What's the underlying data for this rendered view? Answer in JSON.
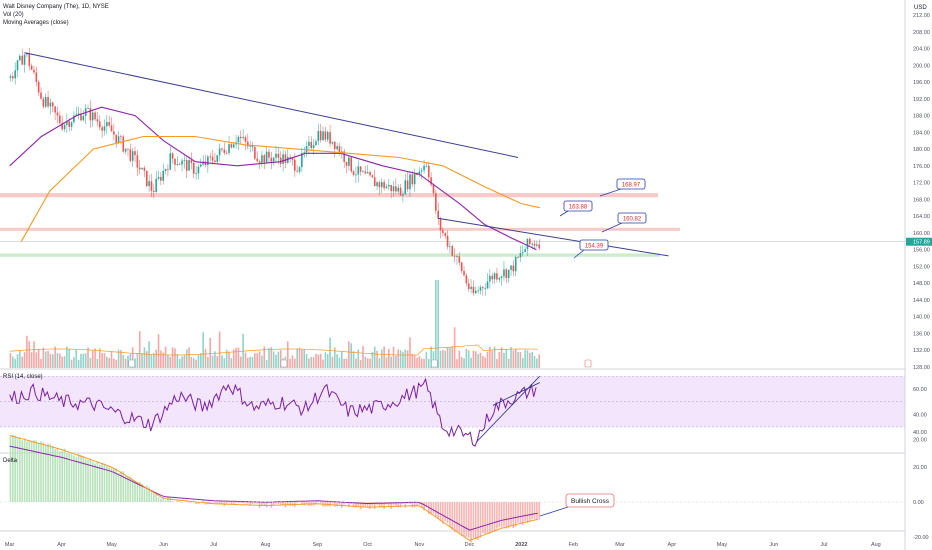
{
  "header": {
    "symbol_line": "Walt Disney Company (The), 1D, NYSE",
    "volume_line": "Vol (20)",
    "ma_line": "Moving Averages (close)",
    "currency": "USD"
  },
  "colors": {
    "up": "#26a69a",
    "down": "#ef5350",
    "trendline": "#3a3f8f",
    "ma_fast": "#8e24aa",
    "ma_slow": "#f59b23",
    "resistance_band": "#f8c9c9",
    "support_band": "#cdeccf",
    "rsi_fill": "#f3e5fb",
    "rsi_line": "#7b1fa2",
    "callout_border": "#2a3fa8",
    "callout_text": "#d32f2f",
    "current_price_bg": "#26a69a"
  },
  "chart_data": [
    {
      "type": "candlestick",
      "panel": "price",
      "title": "Walt Disney Company (The), 1D, NYSE",
      "ylim": [
        128,
        212
      ],
      "y_ticks": [
        128,
        132,
        136,
        140,
        144,
        148,
        152,
        156,
        160,
        164,
        168,
        172,
        176,
        180,
        184,
        188,
        192,
        196,
        200,
        204,
        208,
        212
      ],
      "x_ticks": [
        "Mar",
        "Apr",
        "May",
        "Jun",
        "Jul",
        "Aug",
        "Sep",
        "Oct",
        "Nov",
        "Dec",
        "2022",
        "Feb",
        "Mar",
        "Apr",
        "May",
        "Jun",
        "Jul",
        "Aug"
      ],
      "current_price": 157.89,
      "price_path": [
        {
          "date": "2021-03-01",
          "close": 197
        },
        {
          "date": "2021-03-10",
          "close": 203
        },
        {
          "date": "2021-03-20",
          "close": 192
        },
        {
          "date": "2021-04-01",
          "close": 186
        },
        {
          "date": "2021-04-15",
          "close": 189
        },
        {
          "date": "2021-05-01",
          "close": 184
        },
        {
          "date": "2021-05-15",
          "close": 177
        },
        {
          "date": "2021-05-25",
          "close": 170
        },
        {
          "date": "2021-06-05",
          "close": 178
        },
        {
          "date": "2021-06-20",
          "close": 175
        },
        {
          "date": "2021-07-01",
          "close": 178
        },
        {
          "date": "2021-07-15",
          "close": 183
        },
        {
          "date": "2021-07-28",
          "close": 178
        },
        {
          "date": "2021-08-10",
          "close": 178
        },
        {
          "date": "2021-08-20",
          "close": 176
        },
        {
          "date": "2021-09-01",
          "close": 184
        },
        {
          "date": "2021-09-10",
          "close": 182
        },
        {
          "date": "2021-09-22",
          "close": 175
        },
        {
          "date": "2021-10-05",
          "close": 172
        },
        {
          "date": "2021-10-20",
          "close": 170
        },
        {
          "date": "2021-11-05",
          "close": 177
        },
        {
          "date": "2021-11-12",
          "close": 162
        },
        {
          "date": "2021-11-25",
          "close": 152
        },
        {
          "date": "2021-12-02",
          "close": 145
        },
        {
          "date": "2021-12-15",
          "close": 150
        },
        {
          "date": "2021-12-25",
          "close": 151
        },
        {
          "date": "2022-01-04",
          "close": 157
        },
        {
          "date": "2022-01-10",
          "close": 157.89
        }
      ],
      "moving_averages": [
        {
          "name": "MA fast",
          "color": "purple",
          "path": [
            {
              "date": "2021-03-01",
              "close": 176
            },
            {
              "date": "2021-03-20",
              "close": 183
            },
            {
              "date": "2021-04-10",
              "close": 188
            },
            {
              "date": "2021-04-25",
              "close": 190
            },
            {
              "date": "2021-05-15",
              "close": 188
            },
            {
              "date": "2021-06-01",
              "close": 182
            },
            {
              "date": "2021-06-20",
              "close": 177
            },
            {
              "date": "2021-07-15",
              "close": 176
            },
            {
              "date": "2021-08-10",
              "close": 177
            },
            {
              "date": "2021-08-25",
              "close": 179
            },
            {
              "date": "2021-09-15",
              "close": 179
            },
            {
              "date": "2021-10-10",
              "close": 176
            },
            {
              "date": "2021-11-01",
              "close": 174
            },
            {
              "date": "2021-11-25",
              "close": 167
            },
            {
              "date": "2021-12-10",
              "close": 162
            },
            {
              "date": "2021-12-25",
              "close": 159
            },
            {
              "date": "2022-01-10",
              "close": 156
            }
          ]
        },
        {
          "name": "MA slow",
          "color": "orange",
          "path": [
            {
              "date": "2021-03-08",
              "close": 158
            },
            {
              "date": "2021-03-25",
              "close": 170
            },
            {
              "date": "2021-04-20",
              "close": 180
            },
            {
              "date": "2021-05-20",
              "close": 183
            },
            {
              "date": "2021-06-20",
              "close": 183
            },
            {
              "date": "2021-07-20",
              "close": 181
            },
            {
              "date": "2021-08-20",
              "close": 180
            },
            {
              "date": "2021-09-20",
              "close": 179
            },
            {
              "date": "2021-10-20",
              "close": 178
            },
            {
              "date": "2021-11-15",
              "close": 176
            },
            {
              "date": "2021-12-10",
              "close": 171
            },
            {
              "date": "2022-01-01",
              "close": 167
            },
            {
              "date": "2022-01-12",
              "close": 166
            }
          ]
        }
      ],
      "horizontal_zones": [
        {
          "name": "resistance",
          "from": 168.5,
          "to": 169.5
        },
        {
          "name": "resistance",
          "from": 160.5,
          "to": 161.2
        },
        {
          "name": "support",
          "from": 154.3,
          "to": 155.1
        }
      ],
      "price_labels": [
        "168.97",
        "163.88",
        "160.82",
        "154.39"
      ],
      "trendlines": [
        {
          "name": "descending resistance",
          "from": {
            "date": "2021-03-10",
            "price": 203
          },
          "to": {
            "date": "2021-12-30",
            "price": 178
          }
        },
        {
          "name": "descending triangle top",
          "from": {
            "date": "2021-11-12",
            "price": 163.5
          },
          "to": {
            "date": "2022-03-30",
            "price": 154.5
          }
        }
      ],
      "volume_panel_label": "Vol (20)"
    },
    {
      "type": "line",
      "panel": "rsi",
      "title": "RSI (14, close)",
      "ylim": [
        10,
        72
      ],
      "y_ticks": [
        "60.00",
        "40.00",
        "20.00"
      ],
      "band": [
        30,
        70
      ],
      "midline": 50,
      "series": [
        {
          "name": "RSI (14, close)",
          "values": [
            {
              "date": "2021-03-01",
              "value": 52
            },
            {
              "date": "2021-03-15",
              "value": 58
            },
            {
              "date": "2021-04-01",
              "value": 50
            },
            {
              "date": "2021-04-20",
              "value": 48
            },
            {
              "date": "2021-05-10",
              "value": 38
            },
            {
              "date": "2021-05-25",
              "value": 32
            },
            {
              "date": "2021-06-10",
              "value": 55
            },
            {
              "date": "2021-06-25",
              "value": 45
            },
            {
              "date": "2021-07-10",
              "value": 64
            },
            {
              "date": "2021-07-25",
              "value": 45
            },
            {
              "date": "2021-08-10",
              "value": 50
            },
            {
              "date": "2021-08-25",
              "value": 44
            },
            {
              "date": "2021-09-05",
              "value": 60
            },
            {
              "date": "2021-09-20",
              "value": 42
            },
            {
              "date": "2021-10-05",
              "value": 45
            },
            {
              "date": "2021-10-20",
              "value": 52
            },
            {
              "date": "2021-11-05",
              "value": 62
            },
            {
              "date": "2021-11-15",
              "value": 30
            },
            {
              "date": "2021-12-05",
              "value": 20
            },
            {
              "date": "2021-12-15",
              "value": 44
            },
            {
              "date": "2021-12-25",
              "value": 52
            },
            {
              "date": "2022-01-10",
              "value": 60
            }
          ]
        }
      ],
      "trendlines": [
        {
          "from": {
            "date": "2021-12-05",
            "value": 18
          },
          "to": {
            "date": "2022-01-12",
            "value": 70
          }
        },
        {
          "from": {
            "date": "2021-12-15",
            "value": 47
          },
          "to": {
            "date": "2022-01-12",
            "value": 65
          }
        }
      ]
    },
    {
      "type": "histogram",
      "panel": "delta",
      "title": "Delta",
      "ylim": [
        -27,
        50
      ],
      "y_ticks": [
        "40.00",
        "20.00",
        "0.00",
        "-20.00"
      ],
      "annotation": "Bullish Cross",
      "series": [
        {
          "name": "Delta",
          "values": [
            {
              "date": "2021-03-01",
              "value": 38
            },
            {
              "date": "2021-04-01",
              "value": 30
            },
            {
              "date": "2021-05-01",
              "value": 20
            },
            {
              "date": "2021-06-01",
              "value": 2
            },
            {
              "date": "2021-07-01",
              "value": -1
            },
            {
              "date": "2021-08-01",
              "value": -2
            },
            {
              "date": "2021-09-01",
              "value": -1
            },
            {
              "date": "2021-10-01",
              "value": -3
            },
            {
              "date": "2021-11-01",
              "value": -2
            },
            {
              "date": "2021-12-01",
              "value": -22
            },
            {
              "date": "2021-12-20",
              "value": -15
            },
            {
              "date": "2022-01-10",
              "value": -10
            }
          ]
        }
      ]
    }
  ]
}
